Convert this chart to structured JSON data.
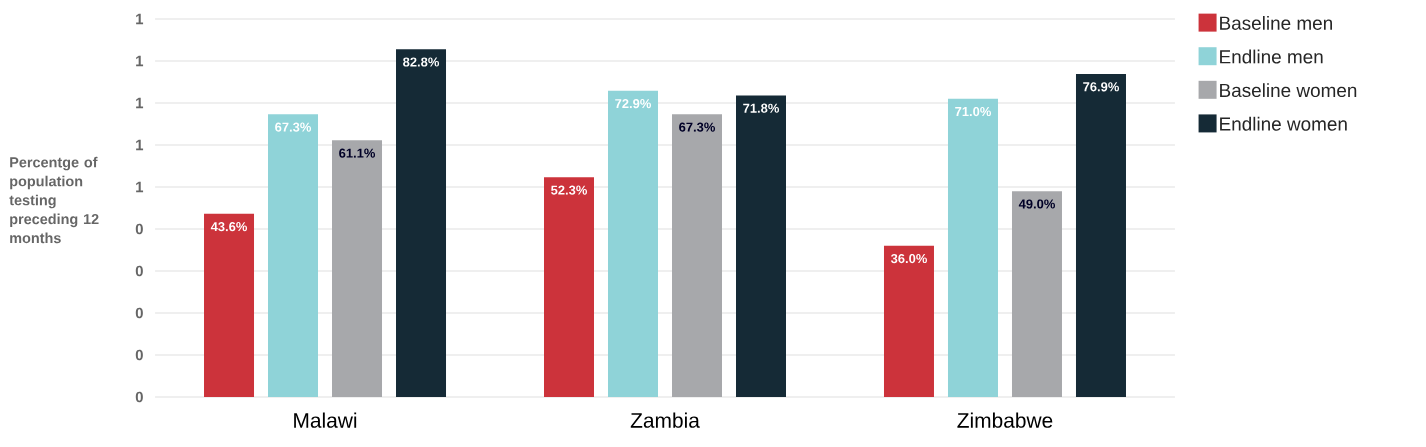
{
  "chart_data": {
    "type": "bar",
    "ylabel": "Percentge of population testing preceding 12 months",
    "categories": [
      "Malawi",
      "Zambia",
      "Zimbabwe"
    ],
    "series": [
      {
        "name": "Baseline men",
        "color": "#cc333b",
        "values": [
          0.436,
          0.523,
          0.36
        ],
        "value_labels": [
          "43.6%",
          "52.3%",
          "36.0%"
        ]
      },
      {
        "name": "Endline men",
        "color": "#8fd3d8",
        "values": [
          0.673,
          0.729,
          0.71
        ],
        "value_labels": [
          "67.3%",
          "72.9%",
          "71.0%"
        ]
      },
      {
        "name": "Baseline women",
        "color": "#a7a8ab",
        "values": [
          0.611,
          0.673,
          0.49
        ],
        "value_labels": [
          "61.1%",
          "67.3%",
          "49.0%"
        ]
      },
      {
        "name": "Endline women",
        "color": "#152a36",
        "values": [
          0.828,
          0.718,
          0.769
        ],
        "value_labels": [
          "82.8%",
          "71.8%",
          "76.9%"
        ]
      }
    ],
    "ylim": [
      0,
      0.9
    ],
    "yticks": [
      {
        "value": 0,
        "label": "0"
      },
      {
        "value": 0.1,
        "label": "0"
      },
      {
        "value": 0.2,
        "label": "0"
      },
      {
        "value": 0.3,
        "label": "0"
      },
      {
        "value": 0.4,
        "label": "0"
      },
      {
        "value": 0.5,
        "label": "1"
      },
      {
        "value": 0.6,
        "label": "1"
      },
      {
        "value": 0.7,
        "label": "1"
      },
      {
        "value": 0.8,
        "label": "1"
      },
      {
        "value": 0.9,
        "label": "1"
      }
    ],
    "grid": "y",
    "legend": "right"
  }
}
